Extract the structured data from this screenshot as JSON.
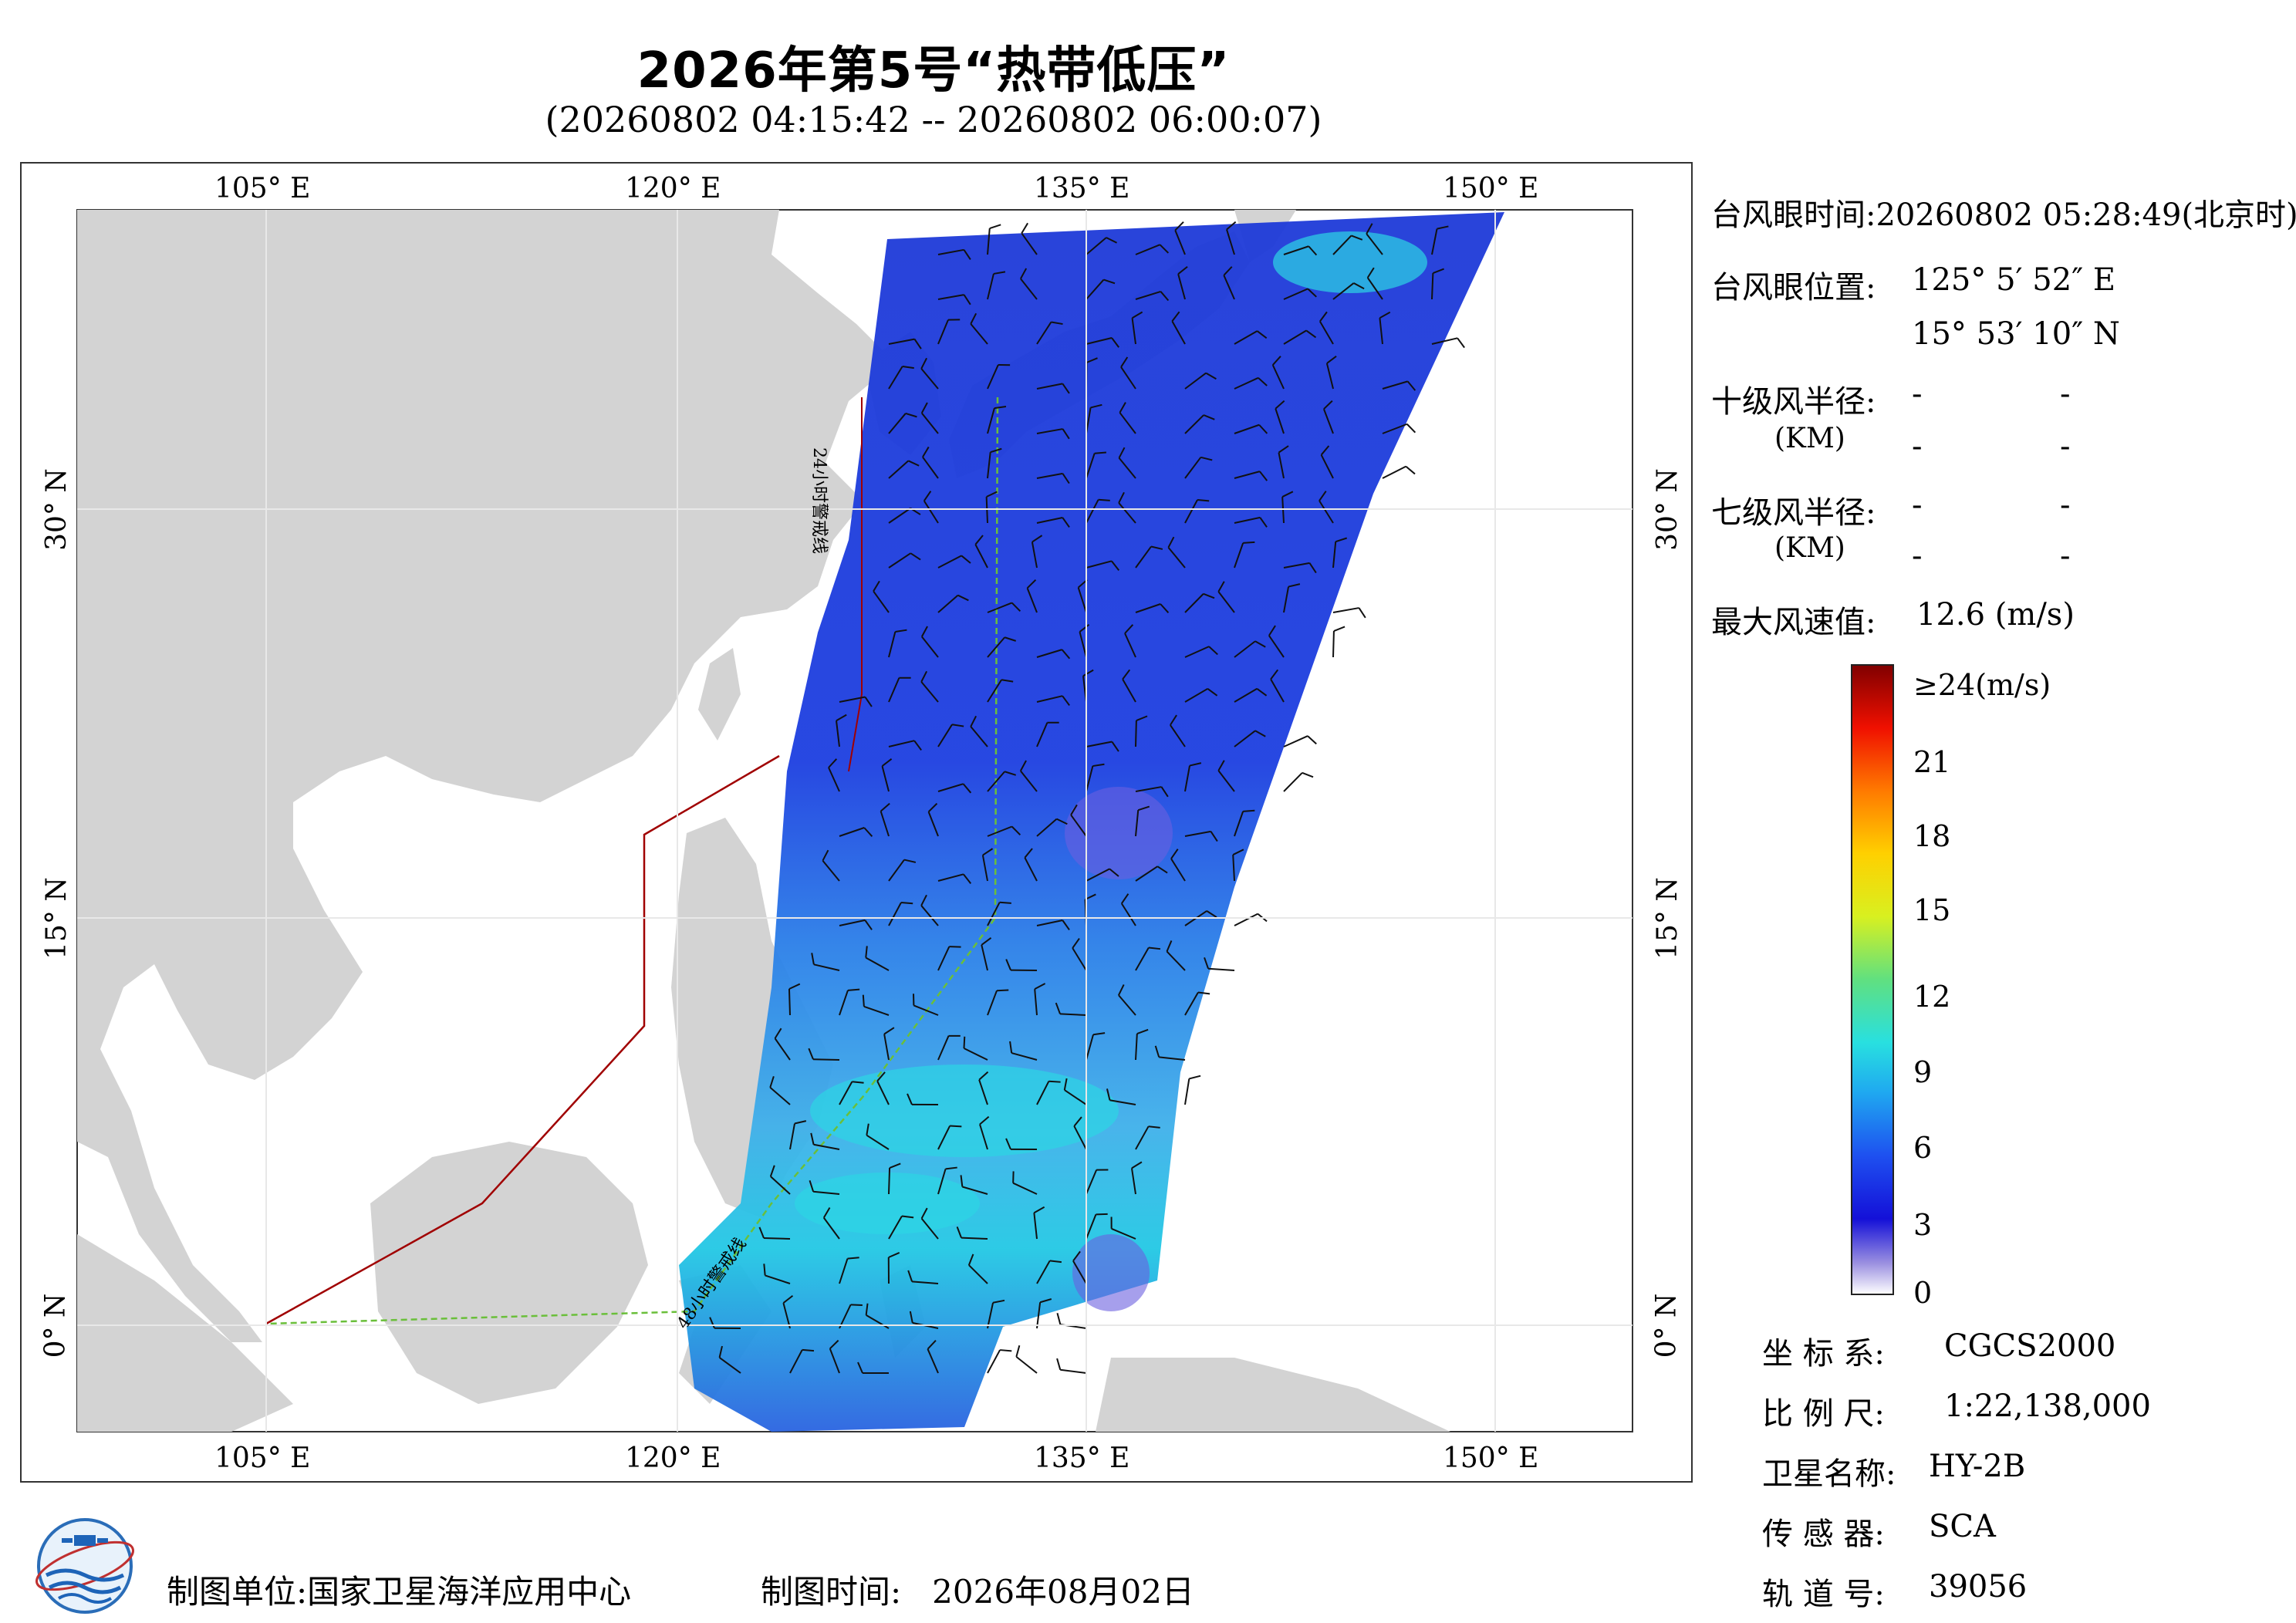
{
  "title": "2026年第5号“热带低压”",
  "subtitle": "(20260802 04:15:42 -- 20260802 06:00:07)",
  "map": {
    "lon_ticks": [
      "105° E",
      "120° E",
      "135° E",
      "150° E"
    ],
    "lat_ticks": [
      "30° N",
      "15° N",
      "0° N"
    ],
    "lines": [
      "24小时警戒线",
      "48小时警戒线"
    ],
    "colors": {
      "land": "#d3d3d3",
      "sea": "#ffffff",
      "boundary": "#a00000",
      "warning_line": "#6abf3a"
    }
  },
  "info": {
    "eye_time_label": "台风眼时间:",
    "eye_time_value": "20260802 05:28:49(北京时)",
    "eye_pos_label": "台风眼位置:",
    "eye_lon": "125° 5′ 52″ E",
    "eye_lat": "15° 53′ 10″ N",
    "r10_label": "十级风半径:",
    "r7_label": "七级风半径:",
    "km_label": "(KM)",
    "dash": "-",
    "max_wind_label": "最大风速值:",
    "max_wind_value": "12.6  (m/s)"
  },
  "colorbar": {
    "top_label": "≥24(m/s)",
    "ticks": [
      "21",
      "18",
      "15",
      "12",
      "9",
      "6",
      "3",
      "0"
    ]
  },
  "meta": {
    "crs_label": "坐 标 系:",
    "crs_value": "CGCS2000",
    "scale_label": "比 例 尺:",
    "scale_value": "1:22,138,000",
    "sat_label": "卫星名称:",
    "sat_value": "HY-2B",
    "sensor_label": "传 感 器:",
    "sensor_value": "SCA",
    "orbit_label": "轨 道 号:",
    "orbit_value": "39056"
  },
  "footer": {
    "org_label": "制图单位:",
    "org_value": "国家卫星海洋应用中心",
    "date_label": "制图时间:",
    "date_value": "2026年08月02日"
  }
}
